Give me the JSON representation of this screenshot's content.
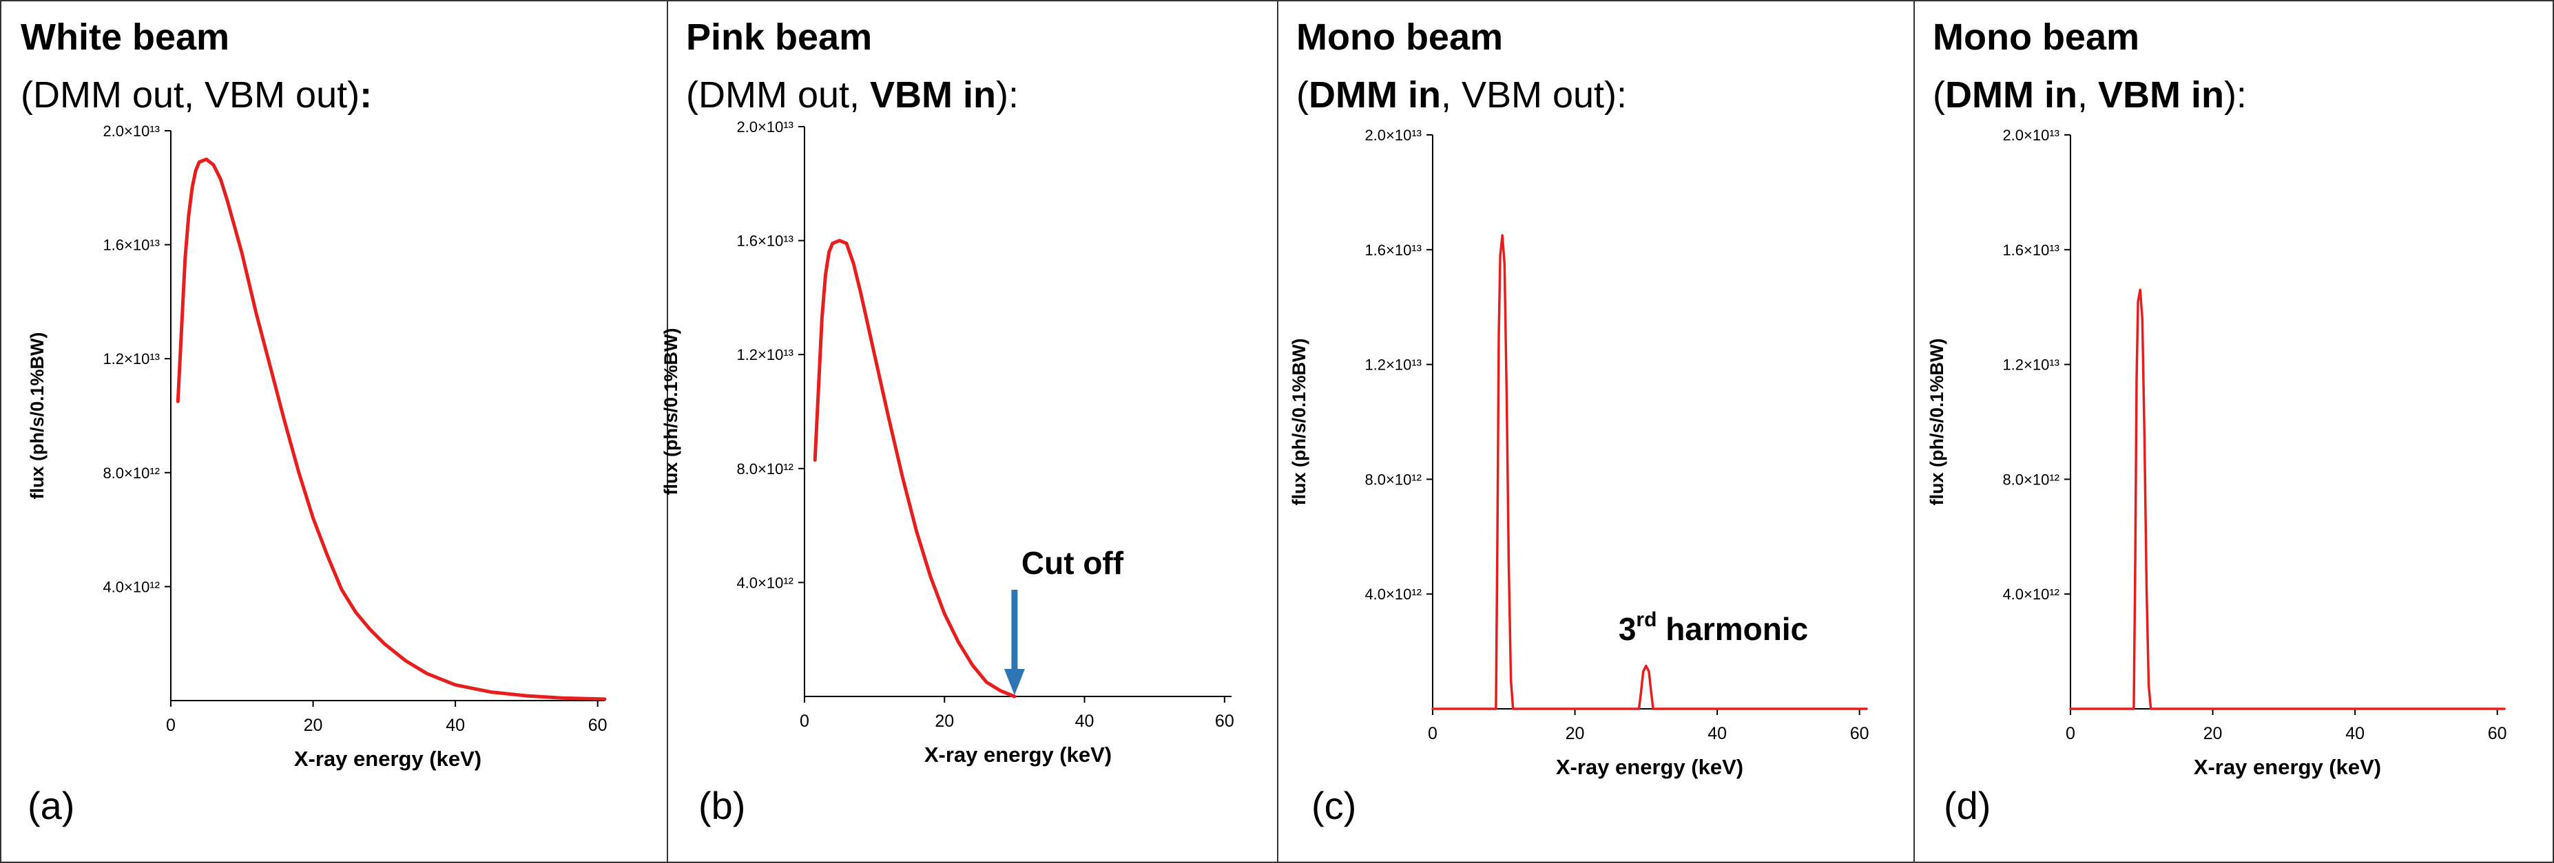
{
  "figure": {
    "panels": [
      {
        "label": "(a)",
        "title_line1": "White beam",
        "title_line2_parts": [
          {
            "text": "(DMM out, VBM out)",
            "bold": false
          },
          {
            "text": ":",
            "bold": true
          }
        ]
      },
      {
        "label": "(b)",
        "title_line1": "Pink beam",
        "title_line2_parts": [
          {
            "text": "(DMM out, ",
            "bold": false
          },
          {
            "text": "VBM in",
            "bold": true
          },
          {
            "text": "):",
            "bold": false
          }
        ]
      },
      {
        "label": "(c)",
        "title_line1": "Mono beam",
        "title_line2_parts": [
          {
            "text": "(",
            "bold": false
          },
          {
            "text": "DMM in",
            "bold": true
          },
          {
            "text": ", VBM out):",
            "bold": false
          }
        ]
      },
      {
        "label": "(d)",
        "title_line1": "Mono beam",
        "title_line2_parts": [
          {
            "text": "(",
            "bold": false
          },
          {
            "text": "DMM in",
            "bold": true
          },
          {
            "text": ", ",
            "bold": false
          },
          {
            "text": "VBM in",
            "bold": true
          },
          {
            "text": "):",
            "bold": false
          }
        ]
      }
    ]
  },
  "chart_data": [
    {
      "type": "line",
      "title": "White beam (DMM out, VBM out):",
      "xlabel": "X-ray energy (keV)",
      "ylabel": "flux (ph/s/0.1%BW)",
      "xlim": [
        0,
        61
      ],
      "ylim": [
        0,
        20000000000000.0
      ],
      "xticks": [
        0,
        20,
        40,
        60
      ],
      "yticks": [
        {
          "value": 4000000000000.0,
          "label": "4.0×10¹²"
        },
        {
          "value": 8000000000000.0,
          "label": "8.0×10¹²"
        },
        {
          "value": 12000000000000.0,
          "label": "1.2×10¹³"
        },
        {
          "value": 16000000000000.0,
          "label": "1.6×10¹³"
        },
        {
          "value": 20000000000000.0,
          "label": "2.0×10¹³"
        }
      ],
      "series": [
        {
          "name": "flux",
          "color": "#e61e1e",
          "x": [
            1,
            1.5,
            2,
            2.5,
            3,
            3.5,
            4,
            5,
            6,
            7,
            8,
            10,
            12,
            14,
            16,
            18,
            20,
            22,
            24,
            26,
            28,
            30,
            33,
            36,
            40,
            45,
            50,
            55,
            61
          ],
          "y": [
            10500000000000.0,
            13000000000000.0,
            15500000000000.0,
            17000000000000.0,
            18000000000000.0,
            18600000000000.0,
            18900000000000.0,
            19000000000000.0,
            18800000000000.0,
            18300000000000.0,
            17500000000000.0,
            15700000000000.0,
            13600000000000.0,
            11700000000000.0,
            9800000000000.0,
            8000000000000.0,
            6400000000000.0,
            5100000000000.0,
            3900000000000.0,
            3100000000000.0,
            2500000000000.0,
            2000000000000.0,
            1400000000000.0,
            950000000000.0,
            550000000000.0,
            300000000000.0,
            170000000000.0,
            90000000000.0,
            50000000000.0
          ]
        }
      ],
      "annotations": []
    },
    {
      "type": "line",
      "title": "Pink beam (DMM out, VBM in):",
      "xlabel": "X-ray energy (keV)",
      "ylabel": "flux (ph/s/0.1%BW)",
      "xlim": [
        0,
        61
      ],
      "ylim": [
        0,
        20000000000000.0
      ],
      "xticks": [
        0,
        20,
        40,
        60
      ],
      "yticks": [
        {
          "value": 4000000000000.0,
          "label": "4.0×10¹²"
        },
        {
          "value": 8000000000000.0,
          "label": "8.0×10¹²"
        },
        {
          "value": 12000000000000.0,
          "label": "1.2×10¹³"
        },
        {
          "value": 16000000000000.0,
          "label": "1.6×10¹³"
        },
        {
          "value": 20000000000000.0,
          "label": "2.0×10¹³"
        }
      ],
      "series": [
        {
          "name": "flux",
          "color": "#e61e1e",
          "x": [
            1.5,
            2,
            2.5,
            3,
            3.5,
            4,
            5,
            6,
            7,
            8,
            10,
            12,
            14,
            16,
            18,
            20,
            22,
            24,
            26,
            28,
            30
          ],
          "y": [
            8300000000000.0,
            10800000000000.0,
            13300000000000.0,
            14800000000000.0,
            15600000000000.0,
            15900000000000.0,
            16000000000000.0,
            15900000000000.0,
            15200000000000.0,
            14200000000000.0,
            12000000000000.0,
            9800000000000.0,
            7700000000000.0,
            5800000000000.0,
            4200000000000.0,
            2900000000000.0,
            1900000000000.0,
            1100000000000.0,
            500000000000.0,
            200000000000.0,
            0
          ]
        }
      ],
      "annotations": [
        {
          "text": "Cut off",
          "x": 30,
          "arrow": true,
          "arrow_color": "#2e75b6"
        }
      ]
    },
    {
      "type": "line",
      "title": "Mono beam (DMM in, VBM out):",
      "xlabel": "X-ray energy (keV)",
      "ylabel": "flux (ph/s/0.1%BW)",
      "xlim": [
        0,
        61
      ],
      "ylim": [
        0,
        20000000000000.0
      ],
      "xticks": [
        0,
        20,
        40,
        60
      ],
      "yticks": [
        {
          "value": 4000000000000.0,
          "label": "4.0×10¹²"
        },
        {
          "value": 8000000000000.0,
          "label": "8.0×10¹²"
        },
        {
          "value": 12000000000000.0,
          "label": "1.2×10¹³"
        },
        {
          "value": 16000000000000.0,
          "label": "1.6×10¹³"
        },
        {
          "value": 20000000000000.0,
          "label": "2.0×10¹³"
        }
      ],
      "series": [
        {
          "name": "flux",
          "color": "#e61e1e",
          "x": [
            0,
            8.9,
            9.1,
            9.3,
            9.5,
            9.8,
            10.1,
            10.4,
            10.7,
            11.0,
            11.3,
            12,
            29,
            29.3,
            29.6,
            30.0,
            30.4,
            30.7,
            31.0,
            61
          ],
          "y": [
            0,
            0,
            6000000000000.0,
            13000000000000.0,
            15800000000000.0,
            16500000000000.0,
            15500000000000.0,
            11000000000000.0,
            5000000000000.0,
            1000000000000.0,
            0,
            0,
            0,
            600000000000.0,
            1300000000000.0,
            1500000000000.0,
            1300000000000.0,
            600000000000.0,
            0,
            0
          ]
        }
      ],
      "annotations": [
        {
          "text_main": "3",
          "text_sup": "rd",
          "text_rest": " harmonic",
          "x": 30,
          "arrow": false
        }
      ]
    },
    {
      "type": "line",
      "title": "Mono beam (DMM in, VBM in):",
      "xlabel": "X-ray energy (keV)",
      "ylabel": "flux (ph/s/0.1%BW)",
      "xlim": [
        0,
        61
      ],
      "ylim": [
        0,
        20000000000000.0
      ],
      "xticks": [
        0,
        20,
        40,
        60
      ],
      "yticks": [
        {
          "value": 4000000000000.0,
          "label": "4.0×10¹²"
        },
        {
          "value": 8000000000000.0,
          "label": "8.0×10¹²"
        },
        {
          "value": 12000000000000.0,
          "label": "1.2×10¹³"
        },
        {
          "value": 16000000000000.0,
          "label": "1.6×10¹³"
        },
        {
          "value": 20000000000000.0,
          "label": "2.0×10¹³"
        }
      ],
      "series": [
        {
          "name": "flux",
          "color": "#e61e1e",
          "x": [
            0,
            8.9,
            9.1,
            9.3,
            9.5,
            9.8,
            10.1,
            10.4,
            10.7,
            11.0,
            11.3,
            61
          ],
          "y": [
            0,
            0,
            5000000000000.0,
            11500000000000.0,
            14200000000000.0,
            14600000000000.0,
            13600000000000.0,
            9500000000000.0,
            4200000000000.0,
            800000000000.0,
            0,
            0
          ]
        }
      ],
      "annotations": []
    }
  ]
}
